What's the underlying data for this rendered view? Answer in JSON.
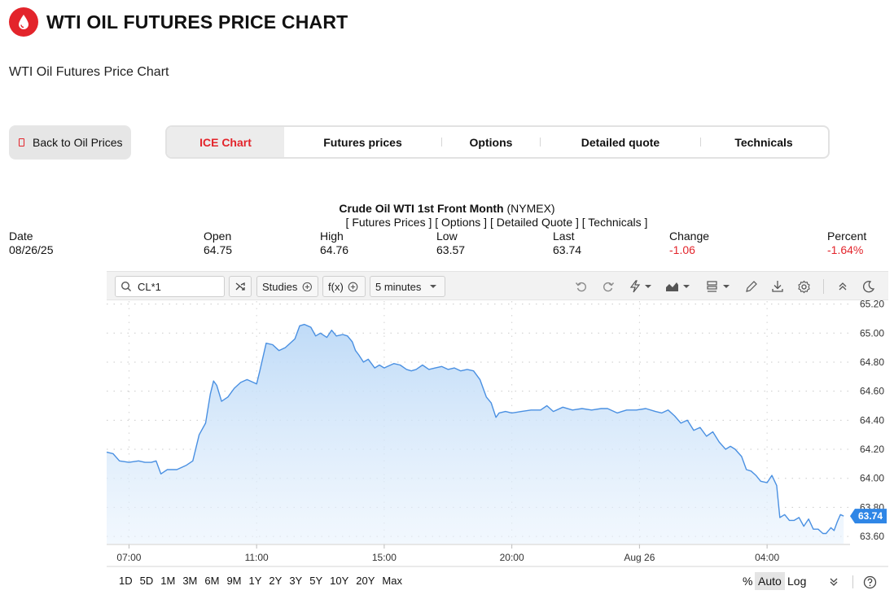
{
  "page": {
    "title": "WTI OIL FUTURES PRICE CHART",
    "subtitle": "WTI Oil Futures Price Chart",
    "brand_color": "#e3242b",
    "logo_icon": "oil-drop-icon"
  },
  "nav": {
    "back_label": "Back to Oil Prices",
    "tabs": [
      {
        "label": "ICE Chart",
        "active": true
      },
      {
        "label": "Futures prices",
        "active": false
      },
      {
        "label": "Options",
        "active": false
      },
      {
        "label": "Detailed quote",
        "active": false
      },
      {
        "label": "Technicals",
        "active": false
      }
    ]
  },
  "quote": {
    "name": "Crude Oil WTI 1st Front Month",
    "exchange": "(NYMEX)",
    "links": "[ Futures Prices ] [ Options ] [ Detailed Quote ] [ Technicals ]",
    "headers": {
      "date": "Date",
      "open": "Open",
      "high": "High",
      "low": "Low",
      "last": "Last",
      "change": "Change",
      "percent": "Percent"
    },
    "values": {
      "date": "08/26/25",
      "open": "64.75",
      "high": "64.76",
      "low": "63.57",
      "last": "63.74",
      "change": "-1.06",
      "percent": "-1.64%"
    }
  },
  "toolbar": {
    "symbol": "CL*1",
    "studies_label": "Studies",
    "fx_label": "f(x)",
    "interval_label": "5 minutes",
    "icons": [
      "search-icon",
      "compare-icon",
      "undo-icon",
      "redo-icon",
      "lightning-icon",
      "chart-type-icon",
      "layout-icon",
      "draw-icon",
      "download-icon",
      "settings-icon",
      "collapse-icon",
      "dark-mode-icon"
    ]
  },
  "range_buttons": [
    "1D",
    "5D",
    "1M",
    "3M",
    "6M",
    "9M",
    "1Y",
    "2Y",
    "3Y",
    "5Y",
    "10Y",
    "20Y",
    "Max"
  ],
  "scale_options": {
    "percent": "%",
    "auto": "Auto",
    "log": "Log",
    "auto_active": true
  },
  "chart_data": {
    "type": "area",
    "line_color": "#4a90e2",
    "fill_color": "#d6e8fb",
    "last_price_label": "63.74",
    "last_price_color": "#2f86e6",
    "x_ticks": [
      {
        "label": "07:00",
        "t": 1.0
      },
      {
        "label": "11:00",
        "t": 5.0
      },
      {
        "label": "15:00",
        "t": 9.0
      },
      {
        "label": "20:00",
        "t": 13.0
      },
      {
        "label": "Aug 26",
        "t": 17.0
      },
      {
        "label": "04:00",
        "t": 21.0
      }
    ],
    "y_ticks": [
      "63.60",
      "63.80",
      "64.00",
      "64.20",
      "64.40",
      "64.60",
      "64.80",
      "65.00",
      "65.20"
    ],
    "ylim": [
      63.55,
      65.22
    ],
    "xlim": [
      0.3,
      23.6
    ],
    "series": [
      {
        "values": [
          [
            0.3,
            64.18
          ],
          [
            0.5,
            64.17
          ],
          [
            0.7,
            64.12
          ],
          [
            1.0,
            64.11
          ],
          [
            1.3,
            64.12
          ],
          [
            1.5,
            64.11
          ],
          [
            1.7,
            64.11
          ],
          [
            1.85,
            64.12
          ],
          [
            2.0,
            64.03
          ],
          [
            2.2,
            64.06
          ],
          [
            2.5,
            64.06
          ],
          [
            2.8,
            64.09
          ],
          [
            3.0,
            64.12
          ],
          [
            3.2,
            64.3
          ],
          [
            3.4,
            64.38
          ],
          [
            3.55,
            64.58
          ],
          [
            3.65,
            64.67
          ],
          [
            3.75,
            64.64
          ],
          [
            3.9,
            64.53
          ],
          [
            4.1,
            64.56
          ],
          [
            4.3,
            64.62
          ],
          [
            4.5,
            64.66
          ],
          [
            4.7,
            64.68
          ],
          [
            4.9,
            64.66
          ],
          [
            5.0,
            64.65
          ],
          [
            5.1,
            64.74
          ],
          [
            5.3,
            64.93
          ],
          [
            5.5,
            64.92
          ],
          [
            5.7,
            64.88
          ],
          [
            5.9,
            64.9
          ],
          [
            6.0,
            64.92
          ],
          [
            6.2,
            64.96
          ],
          [
            6.35,
            65.05
          ],
          [
            6.5,
            65.06
          ],
          [
            6.7,
            65.04
          ],
          [
            6.85,
            64.98
          ],
          [
            7.0,
            65.0
          ],
          [
            7.2,
            64.97
          ],
          [
            7.35,
            65.02
          ],
          [
            7.5,
            64.98
          ],
          [
            7.7,
            64.99
          ],
          [
            7.85,
            64.98
          ],
          [
            8.0,
            64.94
          ],
          [
            8.1,
            64.88
          ],
          [
            8.2,
            64.85
          ],
          [
            8.35,
            64.8
          ],
          [
            8.5,
            64.82
          ],
          [
            8.7,
            64.76
          ],
          [
            8.85,
            64.78
          ],
          [
            9.0,
            64.76
          ],
          [
            9.1,
            64.77
          ],
          [
            9.3,
            64.79
          ],
          [
            9.5,
            64.78
          ],
          [
            9.7,
            64.75
          ],
          [
            9.85,
            64.74
          ],
          [
            10.0,
            64.75
          ],
          [
            10.2,
            64.78
          ],
          [
            10.4,
            64.75
          ],
          [
            10.6,
            64.76
          ],
          [
            10.8,
            64.77
          ],
          [
            11.0,
            64.75
          ],
          [
            11.2,
            64.76
          ],
          [
            11.4,
            64.74
          ],
          [
            11.6,
            64.75
          ],
          [
            11.8,
            64.74
          ],
          [
            12.0,
            64.68
          ],
          [
            12.2,
            64.56
          ],
          [
            12.35,
            64.52
          ],
          [
            12.5,
            64.42
          ],
          [
            12.6,
            64.45
          ],
          [
            12.8,
            64.46
          ],
          [
            13.0,
            64.45
          ],
          [
            13.3,
            64.46
          ],
          [
            13.6,
            64.47
          ],
          [
            13.9,
            64.47
          ],
          [
            14.1,
            64.5
          ],
          [
            14.3,
            64.46
          ],
          [
            14.6,
            64.49
          ],
          [
            14.9,
            64.47
          ],
          [
            15.2,
            64.48
          ],
          [
            15.5,
            64.47
          ],
          [
            15.8,
            64.48
          ],
          [
            16.0,
            64.48
          ],
          [
            16.3,
            64.45
          ],
          [
            16.6,
            64.47
          ],
          [
            16.9,
            64.47
          ],
          [
            17.2,
            64.48
          ],
          [
            17.5,
            64.46
          ],
          [
            17.7,
            64.45
          ],
          [
            17.9,
            64.47
          ],
          [
            18.1,
            64.43
          ],
          [
            18.3,
            64.38
          ],
          [
            18.5,
            64.4
          ],
          [
            18.7,
            64.33
          ],
          [
            18.9,
            64.35
          ],
          [
            19.1,
            64.29
          ],
          [
            19.3,
            64.32
          ],
          [
            19.5,
            64.25
          ],
          [
            19.7,
            64.2
          ],
          [
            19.85,
            64.22
          ],
          [
            20.0,
            64.2
          ],
          [
            20.2,
            64.15
          ],
          [
            20.35,
            64.06
          ],
          [
            20.5,
            64.05
          ],
          [
            20.65,
            64.02
          ],
          [
            20.8,
            63.98
          ],
          [
            21.0,
            63.97
          ],
          [
            21.15,
            64.02
          ],
          [
            21.3,
            63.95
          ],
          [
            21.4,
            63.73
          ],
          [
            21.55,
            63.75
          ],
          [
            21.7,
            63.71
          ],
          [
            21.85,
            63.71
          ],
          [
            22.0,
            63.73
          ],
          [
            22.15,
            63.67
          ],
          [
            22.3,
            63.72
          ],
          [
            22.45,
            63.65
          ],
          [
            22.6,
            63.65
          ],
          [
            22.75,
            63.62
          ],
          [
            22.85,
            63.62
          ],
          [
            23.0,
            63.66
          ],
          [
            23.1,
            63.64
          ],
          [
            23.2,
            63.7
          ],
          [
            23.3,
            63.75
          ],
          [
            23.4,
            63.74
          ]
        ]
      }
    ]
  }
}
